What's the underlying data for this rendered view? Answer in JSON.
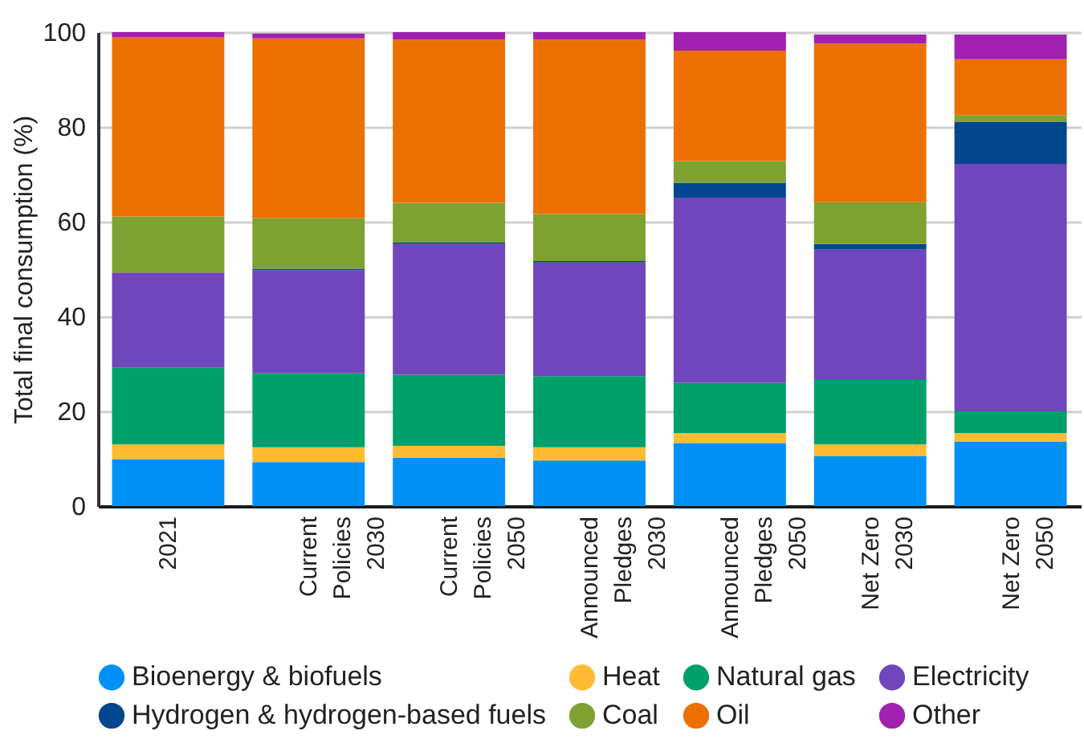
{
  "chart_data": {
    "type": "bar",
    "stacked": true,
    "ylabel": "Total final consumption (%)",
    "categories": [
      "2021",
      "Current Policies 2030",
      "Current Policies 2050",
      "Announced Pledges 2030",
      "Announced Pledges 2050",
      "Net Zero 2030",
      "Net Zero 2050"
    ],
    "series": [
      {
        "name": "Bioenergy & biofuels",
        "color": "#0091f7",
        "values": [
          9.9,
          9.3,
          10.2,
          9.6,
          13.3,
          10.5,
          13.6
        ]
      },
      {
        "name": "Heat",
        "color": "#ffbb33",
        "values": [
          3.1,
          3.1,
          2.5,
          2.8,
          2.1,
          2.5,
          1.8
        ]
      },
      {
        "name": "Natural gas",
        "color": "#00a06b",
        "values": [
          16.2,
          15.6,
          15.0,
          15.0,
          10.6,
          13.6,
          4.6
        ]
      },
      {
        "name": "Electricity",
        "color": "#7046bc",
        "values": [
          20.1,
          21.8,
          27.6,
          24.0,
          39.1,
          27.5,
          52.2
        ]
      },
      {
        "name": "Hydrogen & hydrogen-based fuels",
        "color": "#00478f",
        "values": [
          0,
          0.3,
          0.3,
          0.3,
          3.1,
          1.2,
          8.9
        ]
      },
      {
        "name": "Coal",
        "color": "#7fa131",
        "values": [
          11.8,
          10.7,
          8.4,
          9.9,
          4.6,
          8.8,
          1.4
        ]
      },
      {
        "name": "Oil",
        "color": "#ec7000",
        "values": [
          37.9,
          37.9,
          34.4,
          36.8,
          23.3,
          33.5,
          11.8
        ]
      },
      {
        "name": "Other",
        "color": "#a020b0",
        "values": [
          1.0,
          1.0,
          1.6,
          1.6,
          3.9,
          1.9,
          5.2
        ]
      }
    ],
    "ylim": [
      0,
      100
    ],
    "yticks": [
      0,
      20,
      40,
      60,
      80,
      100
    ],
    "grid": "y",
    "legend": "bottom"
  }
}
